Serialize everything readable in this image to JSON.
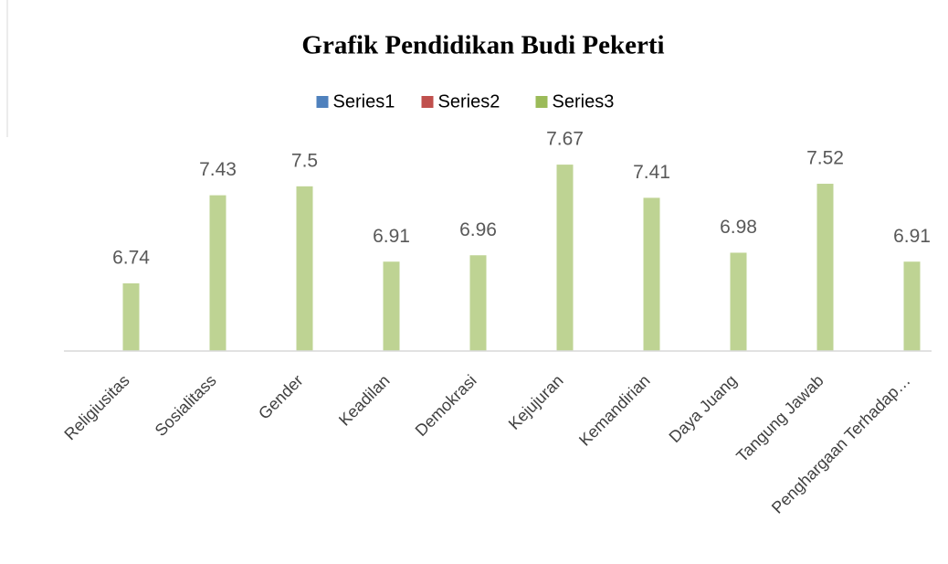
{
  "chart_data": {
    "type": "bar",
    "title": "Grafik Pendidikan Budi Pekerti",
    "categories": [
      "Religiusitas",
      "Sosialitass",
      "Gender",
      "Keadilan",
      "Demokrasi",
      "Kejujuran",
      "Kemandirian",
      "Daya Juang",
      "Tangung Jawab",
      "Penghargaan Terhadap…"
    ],
    "series": [
      {
        "name": "Series1",
        "color": "#4f81bd",
        "values": [
          null,
          null,
          null,
          null,
          null,
          null,
          null,
          null,
          null,
          null
        ]
      },
      {
        "name": "Series2",
        "color": "#c0504d",
        "values": [
          null,
          null,
          null,
          null,
          null,
          null,
          null,
          null,
          null,
          null
        ]
      },
      {
        "name": "Series3",
        "color": "#9bbb59",
        "values": [
          6.74,
          7.43,
          7.5,
          6.91,
          6.96,
          7.67,
          7.41,
          6.98,
          7.52,
          6.91
        ]
      }
    ],
    "ylim": [
      6.21,
      8.0
    ],
    "legend": "top"
  }
}
